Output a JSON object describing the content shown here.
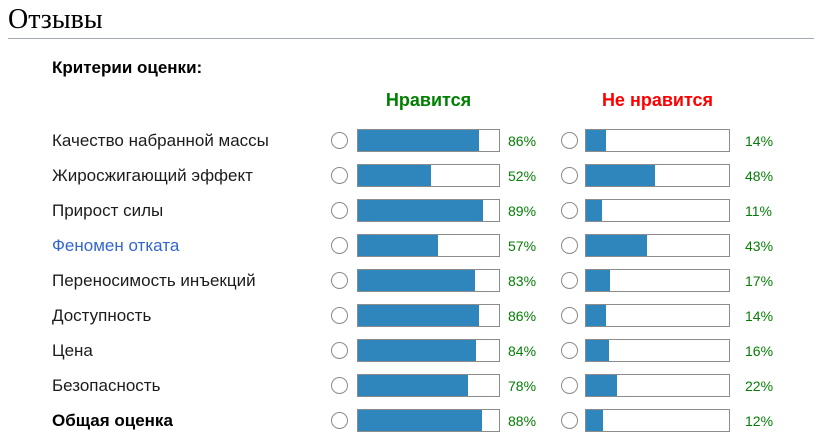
{
  "page": {
    "title": "Отзывы"
  },
  "section": {
    "heading": "Критерии оценки:"
  },
  "columns": {
    "like": {
      "label": "Нравится"
    },
    "dislike": {
      "label": "Не нравится"
    }
  },
  "colors": {
    "like_header": "#008000",
    "dislike_header": "#ff0000",
    "bar_fill": "#2e86bd",
    "bar_border": "#8c8c8c",
    "percent_text": "#067d06",
    "link": "#3366cc",
    "rule": "#a2a9b1"
  },
  "percent_suffix": "%",
  "criteria": [
    {
      "label": "Качество набранной массы",
      "like_percent": 86,
      "dislike_percent": 14,
      "style": "normal"
    },
    {
      "label": "Жиросжигающий эффект",
      "like_percent": 52,
      "dislike_percent": 48,
      "style": "normal"
    },
    {
      "label": "Прирост силы",
      "like_percent": 89,
      "dislike_percent": 11,
      "style": "normal"
    },
    {
      "label": "Феномен отката",
      "like_percent": 57,
      "dislike_percent": 43,
      "style": "link"
    },
    {
      "label": "Переносимость инъекций",
      "like_percent": 83,
      "dislike_percent": 17,
      "style": "normal"
    },
    {
      "label": "Доступность",
      "like_percent": 86,
      "dislike_percent": 14,
      "style": "normal"
    },
    {
      "label": "Цена",
      "like_percent": 84,
      "dislike_percent": 16,
      "style": "normal"
    },
    {
      "label": "Безопасность",
      "like_percent": 78,
      "dislike_percent": 22,
      "style": "normal"
    },
    {
      "label": "Общая оценка",
      "like_percent": 88,
      "dislike_percent": 12,
      "style": "bold"
    }
  ]
}
